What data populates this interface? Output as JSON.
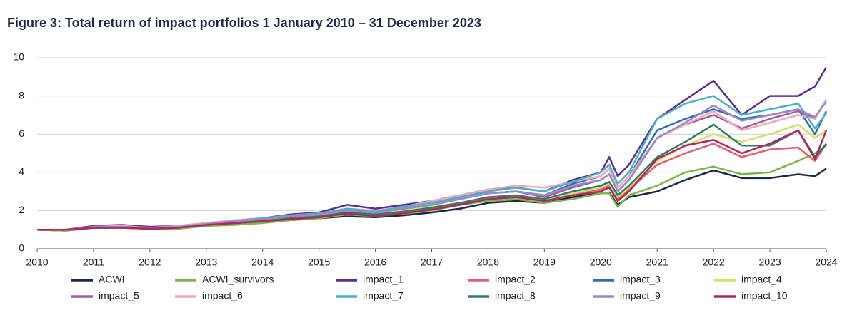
{
  "chart_data": {
    "type": "line",
    "title": "Figure 3: Total return of impact portfolios 1 January 2010 – 31 December 2023",
    "x": [
      2010,
      2010.5,
      2011,
      2011.5,
      2012,
      2012.5,
      2013,
      2013.5,
      2014,
      2014.5,
      2015,
      2015.5,
      2016,
      2016.5,
      2017,
      2017.5,
      2018,
      2018.5,
      2019,
      2019.5,
      2020,
      2020.15,
      2020.3,
      2020.5,
      2021,
      2021.5,
      2022,
      2022.5,
      2023,
      2023.5,
      2023.8,
      2024
    ],
    "xlim": [
      2010,
      2024
    ],
    "xticks": [
      2010,
      2011,
      2012,
      2013,
      2014,
      2015,
      2016,
      2017,
      2018,
      2019,
      2020,
      2021,
      2022,
      2023,
      2024
    ],
    "ylim": [
      0,
      10
    ],
    "yticks": [
      0,
      2,
      4,
      6,
      8,
      10
    ],
    "grid": true,
    "legend": "bottom",
    "series": [
      {
        "name": "ACWI",
        "color": "#1b2a47",
        "values": [
          1,
          0.95,
          1.1,
          1.15,
          1.05,
          1.1,
          1.25,
          1.3,
          1.4,
          1.5,
          1.6,
          1.7,
          1.65,
          1.75,
          1.9,
          2.1,
          2.4,
          2.5,
          2.4,
          2.7,
          2.9,
          2.95,
          2.3,
          2.7,
          3.0,
          3.6,
          4.1,
          3.7,
          3.7,
          3.9,
          3.8,
          4.2
        ]
      },
      {
        "name": "ACWI_survivors",
        "color": "#7ab648",
        "values": [
          1,
          0.95,
          1.1,
          1.15,
          1.05,
          1.05,
          1.2,
          1.25,
          1.35,
          1.5,
          1.6,
          1.8,
          1.7,
          1.85,
          2.0,
          2.3,
          2.5,
          2.6,
          2.4,
          2.6,
          2.9,
          2.9,
          2.2,
          2.8,
          3.3,
          4.0,
          4.3,
          3.9,
          4.0,
          4.6,
          5.0,
          5.4
        ]
      },
      {
        "name": "impact_1",
        "color": "#5b2d8e",
        "values": [
          1,
          1.0,
          1.2,
          1.25,
          1.15,
          1.2,
          1.35,
          1.45,
          1.6,
          1.8,
          1.9,
          2.3,
          2.1,
          2.3,
          2.5,
          2.8,
          3.1,
          3.2,
          3.0,
          3.6,
          4.0,
          4.8,
          3.8,
          4.4,
          6.8,
          7.8,
          8.8,
          7.0,
          8.0,
          8.0,
          8.5,
          9.5
        ]
      },
      {
        "name": "impact_2",
        "color": "#e06070",
        "values": [
          1,
          1.0,
          1.1,
          1.1,
          1.05,
          1.1,
          1.25,
          1.35,
          1.45,
          1.6,
          1.7,
          1.9,
          1.75,
          1.9,
          2.1,
          2.3,
          2.6,
          2.7,
          2.5,
          2.9,
          3.1,
          3.3,
          2.6,
          3.1,
          4.4,
          5.0,
          5.5,
          4.8,
          5.2,
          5.3,
          4.6,
          5.5
        ]
      },
      {
        "name": "impact_3",
        "color": "#2f6fad",
        "values": [
          1,
          1.0,
          1.15,
          1.15,
          1.1,
          1.15,
          1.3,
          1.4,
          1.55,
          1.7,
          1.8,
          2.1,
          1.9,
          2.1,
          2.3,
          2.6,
          2.9,
          3.0,
          2.8,
          3.4,
          3.8,
          4.2,
          3.2,
          3.8,
          6.2,
          6.8,
          7.3,
          6.8,
          7.0,
          7.3,
          6.0,
          7.2
        ]
      },
      {
        "name": "impact_4",
        "color": "#d4e06a",
        "values": [
          1,
          1.0,
          1.1,
          1.1,
          1.05,
          1.1,
          1.25,
          1.35,
          1.5,
          1.6,
          1.7,
          1.9,
          1.8,
          2.0,
          2.2,
          2.4,
          2.7,
          2.8,
          2.5,
          2.9,
          3.2,
          3.4,
          2.7,
          3.2,
          4.6,
          5.4,
          6.0,
          5.6,
          6.0,
          6.5,
          5.8,
          6.2
        ]
      },
      {
        "name": "impact_5",
        "color": "#a0609a",
        "values": [
          1,
          1.0,
          1.15,
          1.15,
          1.1,
          1.15,
          1.3,
          1.4,
          1.55,
          1.7,
          1.8,
          2.0,
          1.9,
          2.1,
          2.3,
          2.6,
          2.9,
          3.0,
          2.7,
          3.2,
          3.6,
          3.9,
          3.0,
          3.6,
          5.8,
          6.5,
          7.0,
          6.3,
          6.8,
          7.2,
          6.8,
          7.8
        ]
      },
      {
        "name": "impact_6",
        "color": "#f0a8b8",
        "values": [
          1,
          1.0,
          1.15,
          1.2,
          1.1,
          1.2,
          1.35,
          1.5,
          1.6,
          1.75,
          1.85,
          2.1,
          2.0,
          2.2,
          2.5,
          2.8,
          3.1,
          3.3,
          3.2,
          3.5,
          3.8,
          4.2,
          3.2,
          3.8,
          5.8,
          6.5,
          7.2,
          6.2,
          6.6,
          7.0,
          6.8,
          7.8
        ]
      },
      {
        "name": "impact_7",
        "color": "#4ab0c8",
        "values": [
          1,
          1.0,
          1.15,
          1.15,
          1.1,
          1.15,
          1.3,
          1.45,
          1.6,
          1.75,
          1.85,
          2.1,
          1.95,
          2.2,
          2.4,
          2.7,
          3.0,
          3.2,
          3.0,
          3.5,
          4.0,
          4.4,
          3.4,
          4.0,
          6.8,
          7.6,
          8.0,
          7.0,
          7.3,
          7.6,
          6.3,
          7.1
        ]
      },
      {
        "name": "impact_8",
        "color": "#2f7a6a",
        "values": [
          1,
          1.0,
          1.1,
          1.1,
          1.05,
          1.1,
          1.25,
          1.35,
          1.45,
          1.6,
          1.7,
          1.9,
          1.8,
          1.95,
          2.15,
          2.4,
          2.7,
          2.8,
          2.6,
          3.0,
          3.3,
          3.5,
          2.8,
          3.3,
          4.8,
          5.6,
          6.5,
          5.4,
          5.4,
          6.2,
          4.8,
          5.5
        ]
      },
      {
        "name": "impact_9",
        "color": "#9a88c8",
        "values": [
          1,
          1.0,
          1.15,
          1.15,
          1.1,
          1.15,
          1.3,
          1.45,
          1.55,
          1.7,
          1.8,
          2.0,
          1.9,
          2.1,
          2.3,
          2.6,
          2.9,
          3.0,
          2.8,
          3.3,
          3.6,
          3.9,
          3.0,
          3.6,
          5.8,
          6.6,
          7.5,
          6.7,
          7.0,
          7.3,
          6.9,
          7.7
        ]
      },
      {
        "name": "impact_10",
        "color": "#b0285a",
        "values": [
          1,
          1.0,
          1.1,
          1.1,
          1.05,
          1.1,
          1.25,
          1.35,
          1.45,
          1.55,
          1.65,
          1.85,
          1.7,
          1.85,
          2.05,
          2.3,
          2.6,
          2.7,
          2.5,
          2.8,
          3.0,
          3.2,
          2.5,
          3.0,
          4.7,
          5.4,
          5.7,
          5.0,
          5.5,
          6.2,
          4.7,
          6.2
        ]
      }
    ]
  }
}
